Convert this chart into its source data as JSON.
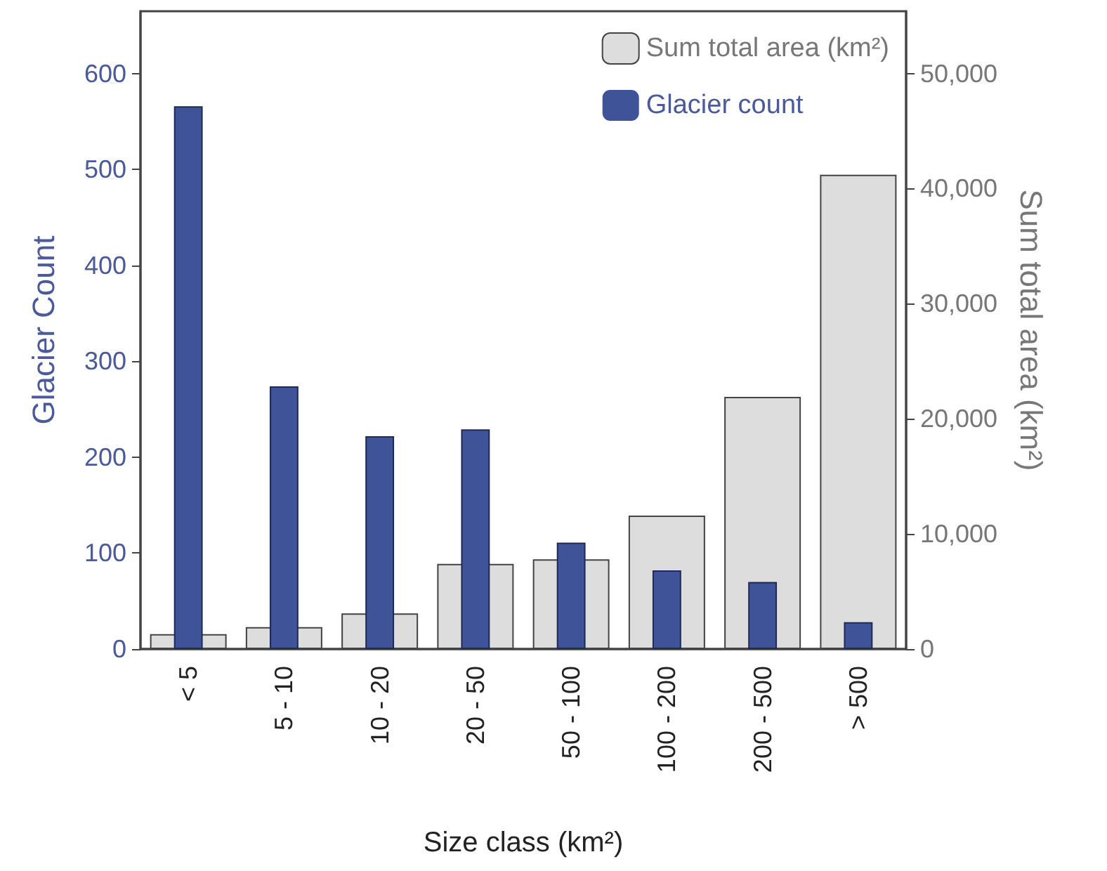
{
  "chart_data": {
    "type": "bar",
    "xlabel": "Size class (km²)",
    "ylabel": "Glacier Count",
    "y2label": "Sum total area (km²)",
    "categories": [
      "< 5",
      "5 - 10",
      "10 - 20",
      "20 - 50",
      "50 - 100",
      "100 - 200",
      "200 - 500",
      "> 500"
    ],
    "series": [
      {
        "name": "Sum total area (km²)",
        "color": "#dddddd",
        "axis": "y2",
        "values": [
          1300,
          1900,
          3100,
          7400,
          7800,
          11600,
          21900,
          41200
        ]
      },
      {
        "name": "Glacier count",
        "color": "#3f5498",
        "values": [
          566,
          274,
          222,
          229,
          111,
          82,
          70,
          28
        ]
      }
    ],
    "ylim": [
      0,
      665
    ],
    "yticks": [
      0,
      100,
      200,
      300,
      400,
      500,
      600
    ],
    "y2lim": [
      0,
      55400
    ],
    "y2ticks": [
      0,
      {
        "value": 10000,
        "label": "10,000"
      },
      {
        "value": 20000,
        "label": "20,000"
      },
      {
        "value": 30000,
        "label": "30,000"
      },
      {
        "value": 40000,
        "label": "40,000"
      },
      {
        "value": 50000,
        "label": "50,000"
      }
    ],
    "grid": false,
    "legend": "top right"
  }
}
